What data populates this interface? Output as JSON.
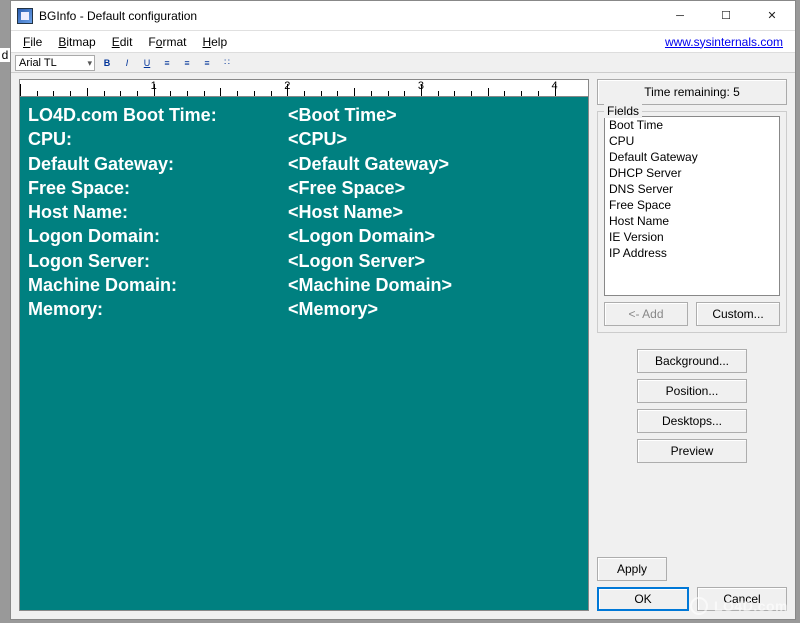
{
  "window": {
    "title": "BGInfo - Default configuration"
  },
  "menu": {
    "file": "File",
    "bitmap": "Bitmap",
    "edit": "Edit",
    "format": "Format",
    "help": "Help",
    "link_text": "www.sysinternals.com"
  },
  "toolbar": {
    "font_name": "Arial TL"
  },
  "time_remaining": "Time remaining: 5",
  "fields_label": "Fields",
  "fields": [
    "Boot Time",
    "CPU",
    "Default Gateway",
    "DHCP Server",
    "DNS Server",
    "Free Space",
    "Host Name",
    "IE Version",
    "IP Address"
  ],
  "buttons": {
    "add": "<- Add",
    "custom": "Custom...",
    "background": "Background...",
    "position": "Position...",
    "desktops": "Desktops...",
    "preview": "Preview",
    "apply": "Apply",
    "ok": "OK",
    "cancel": "Cancel"
  },
  "editor_rows": [
    {
      "label": "LO4D.com Boot Time:",
      "value": "<Boot Time>"
    },
    {
      "label": "CPU:",
      "value": "<CPU>"
    },
    {
      "label": "Default Gateway:",
      "value": "<Default Gateway>"
    },
    {
      "label": "Free Space:",
      "value": "<Free Space>"
    },
    {
      "label": "Host Name:",
      "value": "<Host Name>"
    },
    {
      "label": "Logon Domain:",
      "value": "<Logon Domain>"
    },
    {
      "label": "Logon Server:",
      "value": "<Logon Server>"
    },
    {
      "label": "Machine Domain:",
      "value": "<Machine Domain>"
    },
    {
      "label": "Memory:",
      "value": "<Memory>"
    }
  ],
  "colors": {
    "editor_bg": "#008080",
    "editor_fg": "#ffffff",
    "window_bg": "#f0f0f0"
  },
  "ruler": {
    "inches": 4,
    "subdivisions": 8
  },
  "watermark": "LO4D.com",
  "edge_letter": "d"
}
